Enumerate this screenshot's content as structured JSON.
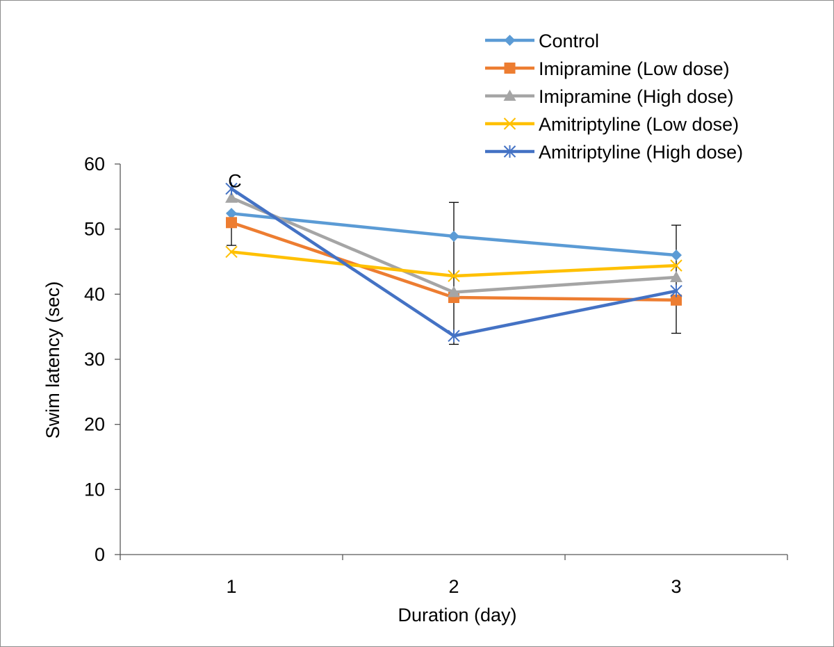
{
  "chart_data": {
    "type": "line",
    "title": "",
    "xlabel": "Duration (day)",
    "ylabel": "Swim latency (sec)",
    "categories": [
      "1",
      "2",
      "3"
    ],
    "ylim": [
      0,
      60
    ],
    "yticks": [
      "0",
      "10",
      "20",
      "30",
      "40",
      "50",
      "60"
    ],
    "grid": false,
    "legend_position": "top-right",
    "annotations": [
      {
        "text": "C",
        "category": "1",
        "y": 57.5
      }
    ],
    "error_bars": [
      {
        "category": "1",
        "low": 47.5,
        "high": 52.5
      },
      {
        "category": "2",
        "low": 32.3,
        "high": 54.1
      },
      {
        "category": "3",
        "low": 34.0,
        "high": 50.6
      }
    ],
    "series": [
      {
        "name": "Control",
        "values": [
          52.4,
          48.9,
          46.0
        ],
        "color": "#5B9BD5",
        "marker": "diamond"
      },
      {
        "name": "Imipramine (Low dose)",
        "values": [
          51.0,
          39.5,
          39.1
        ],
        "color": "#ED7D31",
        "marker": "square"
      },
      {
        "name": "Imipramine (High dose)",
        "values": [
          54.8,
          40.3,
          42.6
        ],
        "color": "#A5A5A5",
        "marker": "triangle"
      },
      {
        "name": "Amitriptyline (Low dose)",
        "values": [
          46.5,
          42.8,
          44.4
        ],
        "color": "#FFC000",
        "marker": "x"
      },
      {
        "name": "Amitriptyline (High dose)",
        "values": [
          56.2,
          33.6,
          40.5
        ],
        "color": "#4472C4",
        "marker": "star"
      }
    ]
  }
}
